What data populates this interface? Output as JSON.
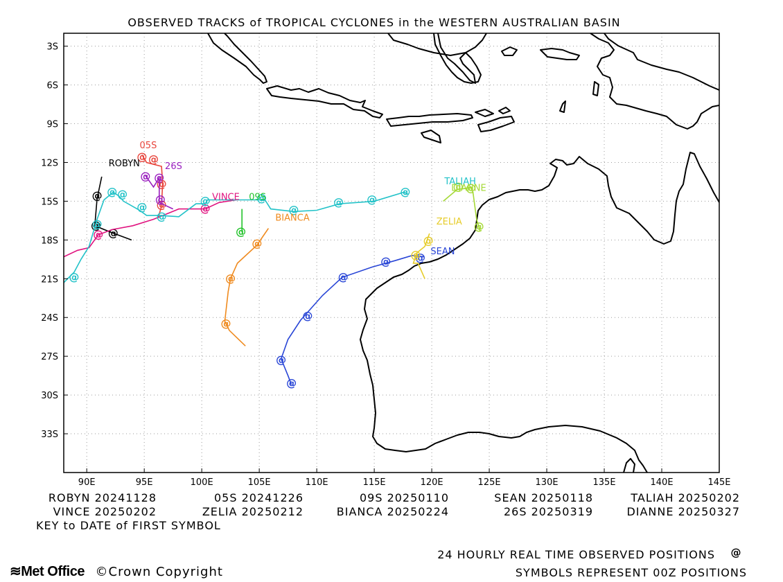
{
  "title": "OBSERVED TRACKS of TROPICAL CYCLONES in the WESTERN AUSTRALIAN BASIN",
  "map": {
    "lon_range": [
      88,
      145
    ],
    "lat_range": [
      -36,
      -2
    ],
    "lon_ticks": [
      {
        "value": 90,
        "label": "90E"
      },
      {
        "value": 95,
        "label": "95E"
      },
      {
        "value": 100,
        "label": "100E"
      },
      {
        "value": 105,
        "label": "105E"
      },
      {
        "value": 110,
        "label": "110E"
      },
      {
        "value": 115,
        "label": "115E"
      },
      {
        "value": 120,
        "label": "120E"
      },
      {
        "value": 125,
        "label": "125E"
      },
      {
        "value": 130,
        "label": "130E"
      },
      {
        "value": 135,
        "label": "135E"
      },
      {
        "value": 140,
        "label": "140E"
      },
      {
        "value": 145,
        "label": "145E"
      }
    ],
    "lat_ticks": [
      {
        "value": -3,
        "label": "3S"
      },
      {
        "value": -6,
        "label": "6S"
      },
      {
        "value": -9,
        "label": "9S"
      },
      {
        "value": -12,
        "label": "12S"
      },
      {
        "value": -15,
        "label": "15S"
      },
      {
        "value": -18,
        "label": "18S"
      },
      {
        "value": -21,
        "label": "21S"
      },
      {
        "value": -24,
        "label": "24S"
      },
      {
        "value": -27,
        "label": "27S"
      },
      {
        "value": -30,
        "label": "30S"
      },
      {
        "value": -33,
        "label": "33S"
      }
    ],
    "grid": true
  },
  "cyclones": [
    {
      "name": "ROBYN",
      "color": "#000000",
      "label": {
        "lon": 91.9,
        "lat": -12.3
      },
      "track": [
        [
          91.3,
          -13.1
        ],
        [
          90.9,
          -14.8
        ],
        [
          90.7,
          -16.9
        ],
        [
          92.1,
          -17.4
        ],
        [
          93.9,
          -18.0
        ]
      ],
      "symbols": [
        [
          90.9,
          -14.6
        ],
        [
          90.8,
          -16.9
        ],
        [
          92.3,
          -17.5
        ]
      ]
    },
    {
      "name": "05S",
      "color": "#e8453c",
      "label": {
        "lon": 94.6,
        "lat": -10.9
      },
      "track": [
        [
          94.8,
          -11.4
        ],
        [
          95.2,
          -12.0
        ],
        [
          96.5,
          -12.3
        ],
        [
          96.6,
          -13.6
        ],
        [
          96.5,
          -15.4
        ],
        [
          96.2,
          -16.3
        ]
      ],
      "symbols": [
        [
          94.8,
          -11.6
        ],
        [
          95.8,
          -11.8
        ],
        [
          96.5,
          -13.7
        ],
        [
          96.5,
          -15.3
        ]
      ]
    },
    {
      "name": "26S",
      "color": "#9a1fbf",
      "label": {
        "lon": 96.8,
        "lat": -12.5
      },
      "track": [
        [
          95.1,
          -13.0
        ],
        [
          95.8,
          -13.9
        ],
        [
          96.3,
          -13.2
        ],
        [
          96.3,
          -15.1
        ],
        [
          97.5,
          -15.6
        ]
      ],
      "symbols": [
        [
          95.1,
          -13.1
        ],
        [
          96.3,
          -13.2
        ],
        [
          96.4,
          -14.9
        ]
      ]
    },
    {
      "name": "VINCE",
      "color": "#e0137f",
      "label": {
        "lon": 100.9,
        "lat": -14.9
      },
      "track": [
        [
          88.0,
          -19.3
        ],
        [
          89.2,
          -18.8
        ],
        [
          90.2,
          -18.6
        ],
        [
          91.0,
          -17.6
        ],
        [
          92.2,
          -17.2
        ],
        [
          94.0,
          -16.9
        ],
        [
          95.8,
          -16.4
        ],
        [
          98.0,
          -15.6
        ],
        [
          100.3,
          -15.6
        ],
        [
          101.5,
          -15.1
        ],
        [
          103.0,
          -14.9
        ]
      ],
      "symbols": [
        [
          91.0,
          -17.6
        ],
        [
          100.3,
          -15.6
        ]
      ]
    },
    {
      "name": "09S",
      "color": "#22c22a",
      "label": {
        "lon": 104.1,
        "lat": -14.9
      },
      "track": [
        [
          103.5,
          -15.6
        ],
        [
          103.5,
          -17.4
        ]
      ],
      "symbols": [
        [
          103.4,
          -17.4
        ]
      ]
    },
    {
      "name": "BIANCA",
      "color": "#ef8a1e",
      "label": {
        "lon": 106.4,
        "lat": -16.5
      },
      "track": [
        [
          105.8,
          -17.1
        ],
        [
          104.8,
          -18.4
        ],
        [
          103.1,
          -19.8
        ],
        [
          102.5,
          -21.0
        ],
        [
          102.3,
          -22.0
        ],
        [
          102.0,
          -24.3
        ],
        [
          102.4,
          -25.0
        ],
        [
          103.8,
          -26.2
        ]
      ],
      "symbols": [
        [
          104.8,
          -18.3
        ],
        [
          102.5,
          -21.0
        ],
        [
          102.1,
          -24.5
        ]
      ]
    },
    {
      "name": "SEAN",
      "color": "#2845d6",
      "label": {
        "lon": 119.9,
        "lat": -19.1
      },
      "track": [
        [
          119.3,
          -19.3
        ],
        [
          118.3,
          -19.2
        ],
        [
          116.8,
          -19.6
        ],
        [
          114.8,
          -20.1
        ],
        [
          112.2,
          -20.9
        ],
        [
          110.5,
          -22.3
        ],
        [
          108.6,
          -24.2
        ],
        [
          107.5,
          -25.7
        ],
        [
          106.9,
          -27.2
        ],
        [
          107.5,
          -28.5
        ],
        [
          107.8,
          -29.2
        ]
      ],
      "symbols": [
        [
          119.0,
          -19.4
        ],
        [
          116.0,
          -19.7
        ],
        [
          112.3,
          -20.9
        ],
        [
          109.2,
          -23.9
        ],
        [
          106.9,
          -27.3
        ],
        [
          107.8,
          -29.1
        ]
      ]
    },
    {
      "name": "ZELIA",
      "color": "#e6cc2a",
      "label": {
        "lon": 120.4,
        "lat": -16.8
      },
      "track": [
        [
          119.8,
          -17.5
        ],
        [
          119.4,
          -18.5
        ],
        [
          118.7,
          -19.0
        ],
        [
          118.4,
          -19.8
        ],
        [
          118.8,
          -19.8
        ],
        [
          119.4,
          -21.0
        ]
      ],
      "symbols": [
        [
          119.7,
          -18.1
        ],
        [
          118.6,
          -19.2
        ]
      ]
    },
    {
      "name": "TALIAH",
      "color": "#22c2c8",
      "label": {
        "lon": 121.1,
        "lat": -13.7
      },
      "track": [
        [
          118.0,
          -14.5
        ],
        [
          117.6,
          -14.3
        ],
        [
          115.0,
          -15.0
        ],
        [
          112.0,
          -15.2
        ],
        [
          110.0,
          -15.7
        ],
        [
          108.0,
          -15.8
        ],
        [
          106.0,
          -15.6
        ],
        [
          105.5,
          -14.9
        ],
        [
          104.0,
          -14.9
        ],
        [
          100.5,
          -14.9
        ],
        [
          100.3,
          -15.2
        ],
        [
          99.5,
          -15.2
        ],
        [
          98.0,
          -16.2
        ],
        [
          96.3,
          -16.1
        ],
        [
          95.2,
          -16.1
        ],
        [
          94.6,
          -15.7
        ],
        [
          93.2,
          -15.0
        ],
        [
          92.8,
          -14.6
        ],
        [
          92.3,
          -14.3
        ],
        [
          91.5,
          -14.9
        ],
        [
          90.9,
          -16.4
        ],
        [
          90.2,
          -18.5
        ],
        [
          89.5,
          -19.5
        ],
        [
          88.9,
          -20.5
        ],
        [
          88.0,
          -21.3
        ]
      ],
      "symbols": [
        [
          117.7,
          -14.3
        ],
        [
          114.8,
          -14.9
        ],
        [
          111.9,
          -15.1
        ],
        [
          108.0,
          -15.7
        ],
        [
          105.2,
          -14.8
        ],
        [
          100.3,
          -15.0
        ],
        [
          96.5,
          -16.2
        ],
        [
          94.8,
          -15.5
        ],
        [
          93.1,
          -14.5
        ],
        [
          92.2,
          -14.3
        ],
        [
          90.9,
          -16.8
        ],
        [
          88.9,
          -20.9
        ]
      ]
    },
    {
      "name": "DIANNE",
      "color": "#a5d936",
      "label": {
        "lon": 121.7,
        "lat": -14.2
      },
      "track": [
        [
          121.0,
          -15.0
        ],
        [
          122.2,
          -14.1
        ],
        [
          123.0,
          -14.0
        ],
        [
          123.4,
          -13.9
        ],
        [
          123.6,
          -14.4
        ],
        [
          123.9,
          -16.4
        ],
        [
          124.2,
          -17.3
        ]
      ],
      "symbols": [
        [
          122.3,
          -13.9
        ],
        [
          123.4,
          -14.0
        ],
        [
          124.1,
          -17.0
        ]
      ]
    }
  ],
  "legend": {
    "rows": [
      [
        {
          "name": "ROBYN",
          "date": "20241128"
        },
        {
          "name": "05S",
          "date": "20241226"
        },
        {
          "name": "09S",
          "date": "20250110"
        },
        {
          "name": "SEAN",
          "date": "20250118"
        },
        {
          "name": "TALIAH",
          "date": "20250202"
        }
      ],
      [
        {
          "name": "VINCE",
          "date": "20250202"
        },
        {
          "name": "ZELIA",
          "date": "20250212"
        },
        {
          "name": "BIANCA",
          "date": "20250224"
        },
        {
          "name": "26S",
          "date": "20250319"
        },
        {
          "name": "DIANNE",
          "date": "20250327"
        }
      ]
    ],
    "key_text": "KEY to DATE of FIRST SYMBOL",
    "note_line1": "24 HOURLY REAL TIME OBSERVED POSITIONS",
    "note_line2": "SYMBOLS REPRESENT 00Z POSITIONS"
  },
  "footer": {
    "logo": "Met Office",
    "copyright": "Crown Copyright",
    "copyright_symbol": "©"
  }
}
